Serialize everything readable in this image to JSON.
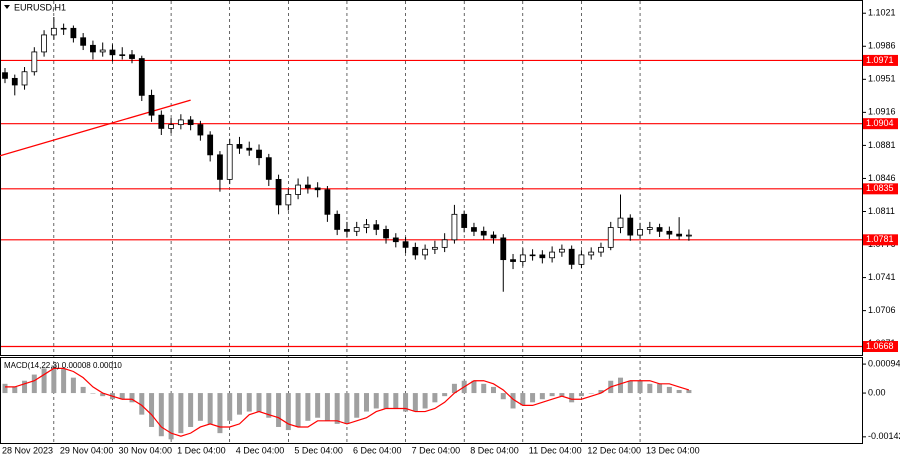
{
  "chart_data": [
    {
      "type": "candlestick",
      "title": "EURUSD,H1",
      "categories": [
        "28 Nov 2023",
        null,
        null,
        null,
        null,
        "29 Nov 04:00",
        null,
        null,
        null,
        null,
        null,
        "30 Nov 04:00",
        null,
        null,
        null,
        null,
        null,
        "1 Dec 04:00",
        null,
        null,
        null,
        null,
        null,
        "4 Dec 04:00",
        null,
        null,
        null,
        null,
        null,
        "5 Dec 04:00",
        null,
        null,
        null,
        null,
        null,
        "6 Dec 04:00",
        null,
        null,
        null,
        null,
        null,
        "7 Dec 04:00",
        null,
        null,
        null,
        null,
        null,
        "8 Dec 04:00",
        null,
        null,
        null,
        null,
        null,
        "11 Dec 04:00",
        null,
        null,
        null,
        null,
        null,
        "12 Dec 04:00",
        null,
        null,
        null,
        null,
        null,
        "13 Dec 04:00",
        null,
        null,
        null,
        null,
        null
      ],
      "open": [
        1.0958,
        1.0952,
        1.0945,
        1.0959,
        1.098,
        1.0998,
        1.1005,
        1.1005,
        1.0995,
        1.0987,
        1.098,
        1.0982,
        1.0977,
        1.0977,
        1.0973,
        1.0934,
        1.0913,
        1.0899,
        1.0903,
        1.0908,
        1.0903,
        1.0892,
        1.0871,
        1.0845,
        1.0882,
        1.0878,
        1.0876,
        1.0868,
        1.0845,
        1.0818,
        1.0829,
        1.0839,
        1.0836,
        1.0834,
        1.0808,
        1.0792,
        1.079,
        1.0794,
        1.0797,
        1.0792,
        1.0783,
        1.0779,
        1.0773,
        1.0765,
        1.0771,
        1.0773,
        1.0781,
        1.0808,
        1.0794,
        1.079,
        1.0786,
        1.0783,
        1.076,
        1.0758,
        1.0765,
        1.0765,
        1.0762,
        1.0768,
        1.0771,
        1.0755,
        1.0765,
        1.0768,
        1.0773,
        1.0794,
        1.0804,
        1.0786,
        1.0792,
        1.0794,
        1.079,
        1.0787,
        1.0785
      ],
      "high": [
        1.0963,
        1.0956,
        1.0964,
        1.0985,
        1.1003,
        1.1017,
        1.101,
        1.1008,
        1.1,
        1.0992,
        1.099,
        1.0988,
        1.0985,
        1.0982,
        1.0976,
        1.094,
        1.0918,
        1.091,
        1.0914,
        1.0912,
        1.0907,
        1.0896,
        1.0875,
        1.0888,
        1.089,
        1.0885,
        1.0882,
        1.0872,
        1.085,
        1.0835,
        1.0846,
        1.0848,
        1.0842,
        1.0838,
        1.0812,
        1.08,
        1.08,
        1.0803,
        1.0802,
        1.0796,
        1.0788,
        1.0784,
        1.0778,
        1.0776,
        1.078,
        1.0788,
        1.0818,
        1.0812,
        1.0799,
        1.0795,
        1.079,
        1.0787,
        1.0766,
        1.0772,
        1.0771,
        1.077,
        1.0774,
        1.0776,
        1.0775,
        1.077,
        1.0773,
        1.0778,
        1.08,
        1.0829,
        1.0808,
        1.0799,
        1.08,
        1.0798,
        1.0795,
        1.0805,
        1.0792
      ],
      "low": [
        1.0947,
        1.0934,
        1.094,
        1.0955,
        1.0975,
        1.0993,
        1.0998,
        1.099,
        1.0982,
        1.0972,
        1.0975,
        1.097,
        1.0972,
        1.0968,
        1.0928,
        1.0906,
        1.0892,
        1.0894,
        1.0898,
        1.0897,
        1.0886,
        1.0864,
        1.0832,
        1.084,
        1.0872,
        1.087,
        1.086,
        1.0838,
        1.0808,
        1.0812,
        1.0824,
        1.083,
        1.0826,
        1.08,
        1.0786,
        1.0784,
        1.0785,
        1.0788,
        1.0786,
        1.0777,
        1.0773,
        1.0767,
        1.076,
        1.076,
        1.0766,
        1.0768,
        1.0777,
        1.0789,
        1.0785,
        1.0781,
        1.0777,
        1.0726,
        1.075,
        1.0753,
        1.0759,
        1.0756,
        1.0757,
        1.0763,
        1.075,
        1.0751,
        1.076,
        1.0763,
        1.077,
        1.0788,
        1.078,
        1.0782,
        1.0787,
        1.0784,
        1.0782,
        1.0781,
        1.078
      ],
      "close": [
        1.0952,
        1.0945,
        1.0959,
        1.098,
        1.0998,
        1.1005,
        1.1005,
        1.0995,
        1.0987,
        1.098,
        1.0982,
        1.0977,
        1.0977,
        1.0973,
        1.0934,
        1.0913,
        1.0899,
        1.0903,
        1.0908,
        1.0903,
        1.0892,
        1.0871,
        1.0845,
        1.0882,
        1.0878,
        1.0876,
        1.0868,
        1.0845,
        1.0818,
        1.0829,
        1.0839,
        1.0836,
        1.0834,
        1.0808,
        1.0792,
        1.079,
        1.0794,
        1.0797,
        1.0792,
        1.0783,
        1.0779,
        1.0773,
        1.0765,
        1.0771,
        1.0773,
        1.0781,
        1.0808,
        1.0794,
        1.079,
        1.0786,
        1.0783,
        1.076,
        1.0758,
        1.0765,
        1.0765,
        1.0762,
        1.0768,
        1.0771,
        1.0755,
        1.0765,
        1.0768,
        1.0773,
        1.0794,
        1.0804,
        1.0786,
        1.0792,
        1.0794,
        1.079,
        1.0787,
        1.0785,
        1.0786
      ],
      "candle_color": "#000000",
      "ylim": [
        1.0659,
        1.1035
      ],
      "yticks": [
        1.1021,
        1.0986,
        1.0951,
        1.0916,
        1.0881,
        1.0846,
        1.0811,
        1.0776,
        1.0741,
        1.0706,
        1.0671
      ],
      "grid": true,
      "levels": [
        1.0971,
        1.0904,
        1.0835,
        1.0781,
        1.0668
      ],
      "level_color": "#ff0000",
      "trendline": {
        "x": [
          0,
          19
        ],
        "y": [
          1.087,
          1.0929
        ],
        "color": "#ff0000"
      }
    },
    {
      "type": "macd",
      "title": "MACD(14,22,3) 0.00008 0.00010",
      "ylim": [
        -0.00162,
        0.00117
      ],
      "yticks": [
        0.00094,
        {
          "value": 0,
          "label": "0.00"
        },
        -0.00142
      ],
      "series": [
        {
          "type": "bar",
          "color": "#a0a0a0",
          "values": [
            0.0003,
            0.0002,
            0.0004,
            0.0006,
            0.0008,
            0.0009,
            0.0008,
            0.0005,
            0.0002,
            0.0,
            -0.0001,
            -0.0002,
            -0.0002,
            -0.0003,
            -0.0007,
            -0.0011,
            -0.0014,
            -0.0015,
            -0.0013,
            -0.0011,
            -0.0009,
            -0.001,
            -0.0013,
            -0.0009,
            -0.0007,
            -0.0006,
            -0.0006,
            -0.0008,
            -0.0011,
            -0.0012,
            -0.0011,
            -0.0009,
            -0.0008,
            -0.0009,
            -0.001,
            -0.001,
            -0.0008,
            -0.0006,
            -0.0005,
            -0.0005,
            -0.0005,
            -0.0006,
            -0.0006,
            -0.0005,
            -0.0003,
            -0.0001,
            0.0003,
            0.0004,
            0.0004,
            0.0003,
            0.0002,
            -0.0002,
            -0.0005,
            -0.0004,
            -0.0003,
            -0.0002,
            -0.0001,
            -0.0001,
            -0.0003,
            -0.0001,
            0.0,
            0.0001,
            0.0004,
            0.0005,
            0.0004,
            0.0004,
            0.0003,
            0.0003,
            0.0002,
            0.0001,
            0.0001
          ]
        },
        {
          "type": "line",
          "color": "#ff0000",
          "values": [
            0.0002,
            0.0002,
            0.0003,
            0.0004,
            0.0006,
            0.0008,
            0.0008,
            0.0007,
            0.0005,
            0.0002,
            0.0,
            -0.0001,
            -0.0002,
            -0.0002,
            -0.0004,
            -0.0007,
            -0.0011,
            -0.0013,
            -0.0014,
            -0.0013,
            -0.0011,
            -0.001,
            -0.0011,
            -0.0011,
            -0.001,
            -0.0007,
            -0.0006,
            -0.0007,
            -0.0008,
            -0.001,
            -0.0011,
            -0.0011,
            -0.0009,
            -0.0009,
            -0.0009,
            -0.001,
            -0.0009,
            -0.0008,
            -0.0006,
            -0.0005,
            -0.0005,
            -0.0005,
            -0.0006,
            -0.0006,
            -0.0005,
            -0.0003,
            0.0,
            0.0002,
            0.0004,
            0.0004,
            0.0003,
            0.0001,
            -0.0002,
            -0.0004,
            -0.0004,
            -0.0003,
            -0.0002,
            -0.0001,
            -0.0002,
            -0.0002,
            -0.0001,
            0.0,
            0.0002,
            0.0003,
            0.0004,
            0.0004,
            0.0004,
            0.0003,
            0.0003,
            0.0002,
            0.0001
          ]
        }
      ]
    }
  ]
}
